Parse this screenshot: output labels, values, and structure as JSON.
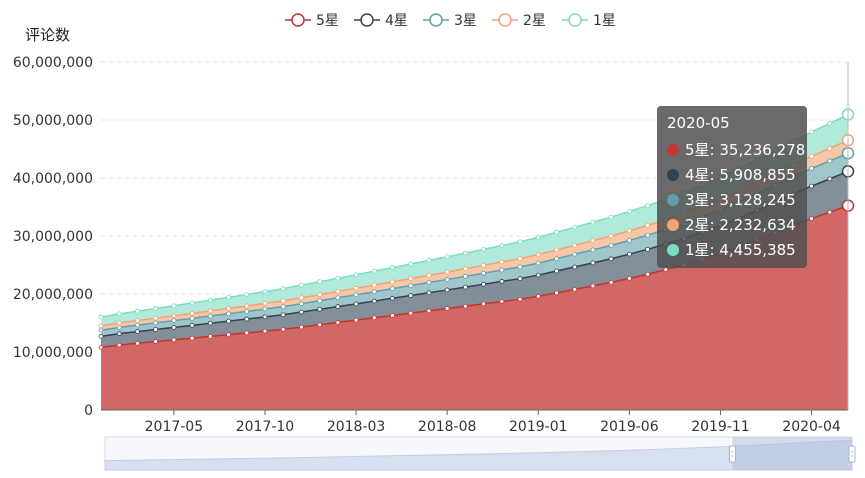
{
  "chart_data": {
    "type": "area",
    "stacked": true,
    "ylabel": "评论数",
    "ylim": [
      0,
      60000000
    ],
    "yticks": [
      "0",
      "10,000,000",
      "20,000,000",
      "30,000,000",
      "40,000,000",
      "50,000,000",
      "60,000,000"
    ],
    "xrange": [
      "2017-01",
      "2020-05"
    ],
    "xticks": [
      "2017-05",
      "2017-10",
      "2018-03",
      "2018-08",
      "2019-01",
      "2019-06",
      "2019-11",
      "2020-04"
    ],
    "grid": true,
    "legend_position": "top",
    "series": [
      {
        "name": "5星",
        "color": "#c23531",
        "values": [
          10800000,
          11200000,
          11500000,
          11800000,
          12100000,
          12400000,
          12700000,
          13000000,
          13300000,
          13600000,
          13900000,
          14300000,
          14700000,
          15100000,
          15500000,
          15900000,
          16300000,
          16700000,
          17100000,
          17500000,
          17900000,
          18300000,
          18700000,
          19100000,
          19600000,
          20200000,
          20800000,
          21400000,
          22000000,
          22700000,
          23400000,
          24200000,
          25000000,
          26000000,
          27000000,
          28100000,
          29300000,
          30500000,
          31800000,
          33000000,
          34100000,
          35236278
        ]
      },
      {
        "name": "4星",
        "color": "#2f4554",
        "values": [
          1900000,
          1960000,
          2020000,
          2080000,
          2140000,
          2200000,
          2260000,
          2320000,
          2380000,
          2450000,
          2520000,
          2590000,
          2660000,
          2730000,
          2800000,
          2880000,
          2960000,
          3040000,
          3120000,
          3200000,
          3290000,
          3380000,
          3470000,
          3560000,
          3660000,
          3760000,
          3860000,
          3960000,
          4070000,
          4180000,
          4300000,
          4420000,
          4550000,
          4700000,
          4850000,
          5000000,
          5150000,
          5300000,
          5450000,
          5600000,
          5750000,
          5908855
        ]
      },
      {
        "name": "3星",
        "color": "#61a0a8",
        "values": [
          1050000,
          1080000,
          1110000,
          1140000,
          1170000,
          1200000,
          1240000,
          1280000,
          1320000,
          1360000,
          1400000,
          1440000,
          1480000,
          1520000,
          1560000,
          1610000,
          1660000,
          1710000,
          1760000,
          1810000,
          1860000,
          1910000,
          1960000,
          2010000,
          2070000,
          2130000,
          2190000,
          2250000,
          2310000,
          2370000,
          2430000,
          2500000,
          2570000,
          2640000,
          2710000,
          2780000,
          2850000,
          2920000,
          2990000,
          3050000,
          3090000,
          3128245
        ]
      },
      {
        "name": "2星",
        "color": "#f4a26f",
        "values": [
          750000,
          770000,
          790000,
          810000,
          830000,
          850000,
          880000,
          910000,
          940000,
          970000,
          1000000,
          1030000,
          1060000,
          1090000,
          1120000,
          1150000,
          1180000,
          1210000,
          1240000,
          1270000,
          1300000,
          1340000,
          1380000,
          1420000,
          1460000,
          1500000,
          1540000,
          1580000,
          1620000,
          1660000,
          1700000,
          1740000,
          1780000,
          1820000,
          1860000,
          1900000,
          1950000,
          2000000,
          2050000,
          2100000,
          2170000,
          2232634
        ]
      },
      {
        "name": "1星",
        "color": "#7bdcc3",
        "values": [
          1500000,
          1560000,
          1620000,
          1680000,
          1740000,
          1800000,
          1860000,
          1920000,
          1980000,
          2040000,
          2100000,
          2160000,
          2220000,
          2280000,
          2340000,
          2400000,
          2460000,
          2520000,
          2580000,
          2640000,
          2700000,
          2770000,
          2840000,
          2910000,
          2980000,
          3050000,
          3120000,
          3190000,
          3260000,
          3330000,
          3400000,
          3480000,
          3560000,
          3640000,
          3720000,
          3800000,
          3900000,
          4000000,
          4100000,
          4200000,
          4320000,
          4455385
        ]
      }
    ]
  },
  "tooltip": {
    "title": "2020-05",
    "rows": [
      {
        "label": "5星: 35,236,278",
        "color": "#c23531"
      },
      {
        "label": "4星: 5,908,855",
        "color": "#2f4554"
      },
      {
        "label": "3星: 3,128,245",
        "color": "#61a0a8"
      },
      {
        "label": "2星: 2,232,634",
        "color": "#f4a26f"
      },
      {
        "label": "1星: 4,455,385",
        "color": "#7bdcc3"
      }
    ]
  },
  "datazoom": {
    "start_fraction": 0.84,
    "end_fraction": 1.0
  }
}
